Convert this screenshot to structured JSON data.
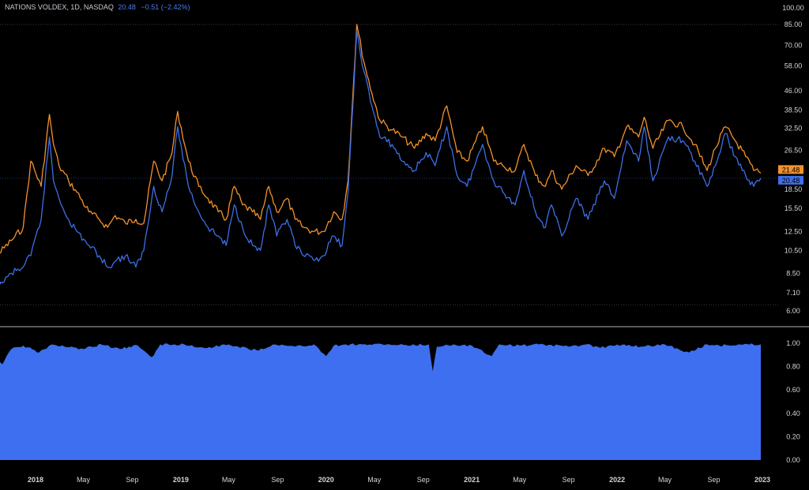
{
  "legend": {
    "symbol": "NATIONS VOLDEX, 1D, NASDAQ",
    "last_value": "20.48",
    "change": "−0.51 (−2.42%)"
  },
  "colors": {
    "background": "#000000",
    "orange_series": "#f5912b",
    "blue_series": "#3d6fe8",
    "lower_area": "#3d6ff0",
    "divider": "#b2b5be"
  },
  "chart_data": [
    {
      "type": "line",
      "title": "",
      "scale": "log",
      "ylim": [
        6.0,
        100.0
      ],
      "y_ticks": [
        "100.00",
        "85.00",
        "70.00",
        "58.00",
        "46.00",
        "38.50",
        "32.50",
        "26.50",
        "21.48",
        "20.48",
        "18.50",
        "15.50",
        "12.50",
        "10.50",
        "8.50",
        "7.10",
        "6.00"
      ],
      "x_ticks": [
        {
          "label": "2018",
          "date": "2018-01-01",
          "year": true
        },
        {
          "label": "May",
          "date": "2018-05-01",
          "year": false
        },
        {
          "label": "Sep",
          "date": "2018-09-01",
          "year": false
        },
        {
          "label": "2019",
          "date": "2019-01-01",
          "year": true
        },
        {
          "label": "May",
          "date": "2019-05-01",
          "year": false
        },
        {
          "label": "Sep",
          "date": "2019-09-01",
          "year": false
        },
        {
          "label": "2020",
          "date": "2020-01-01",
          "year": true
        },
        {
          "label": "May",
          "date": "2020-05-01",
          "year": false
        },
        {
          "label": "Sep",
          "date": "2020-09-01",
          "year": false
        },
        {
          "label": "2021",
          "date": "2021-01-01",
          "year": true
        },
        {
          "label": "May",
          "date": "2021-05-01",
          "year": false
        },
        {
          "label": "Sep",
          "date": "2021-09-01",
          "year": false
        },
        {
          "label": "2022",
          "date": "2022-01-01",
          "year": true
        },
        {
          "label": "May",
          "date": "2022-05-01",
          "year": false
        },
        {
          "label": "Sep",
          "date": "2022-09-01",
          "year": false
        },
        {
          "label": "2023",
          "date": "2023-01-01",
          "year": true
        }
      ],
      "price_badges": [
        {
          "label": "21.48",
          "value": 21.48,
          "color": "#f5912b"
        },
        {
          "label": "20.48",
          "value": 20.48,
          "color": "#3d6fe8"
        }
      ],
      "series": [
        {
          "color": "#f5912b",
          "x": [
            "2017-08-01",
            "2017-09-01",
            "2017-10-01",
            "2017-11-01",
            "2017-12-01",
            "2017-12-20",
            "2018-01-15",
            "2018-02-05",
            "2018-02-15",
            "2018-03-01",
            "2018-03-25",
            "2018-04-15",
            "2018-05-15",
            "2018-06-10",
            "2018-07-01",
            "2018-07-20",
            "2018-08-15",
            "2018-09-10",
            "2018-09-30",
            "2018-10-25",
            "2018-11-15",
            "2018-12-10",
            "2018-12-24",
            "2019-01-20",
            "2019-02-15",
            "2019-03-10",
            "2019-04-05",
            "2019-04-25",
            "2019-05-15",
            "2019-06-05",
            "2019-06-30",
            "2019-07-20",
            "2019-08-10",
            "2019-08-30",
            "2019-09-25",
            "2019-10-15",
            "2019-11-05",
            "2019-11-30",
            "2019-12-25",
            "2020-01-20",
            "2020-02-10",
            "2020-02-25",
            "2020-03-10",
            "2020-03-18",
            "2020-04-05",
            "2020-04-25",
            "2020-05-15",
            "2020-06-15",
            "2020-07-10",
            "2020-08-10",
            "2020-09-08",
            "2020-10-01",
            "2020-10-30",
            "2020-11-25",
            "2020-12-20",
            "2021-01-28",
            "2021-02-25",
            "2021-03-20",
            "2021-04-20",
            "2021-05-12",
            "2021-06-10",
            "2021-07-05",
            "2021-07-20",
            "2021-08-15",
            "2021-09-20",
            "2021-10-20",
            "2021-11-30",
            "2021-12-25",
            "2022-01-25",
            "2022-02-24",
            "2022-03-10",
            "2022-04-01",
            "2022-05-10",
            "2022-06-15",
            "2022-07-15",
            "2022-08-15",
            "2022-09-05",
            "2022-09-30",
            "2022-10-25",
            "2022-11-20",
            "2022-12-10",
            "2022-12-28"
          ],
          "values": [
            10.0,
            10.5,
            10.2,
            11.5,
            13.0,
            24.0,
            19.0,
            37.0,
            28.0,
            23.0,
            20.0,
            18.0,
            15.0,
            14.0,
            13.0,
            14.5,
            13.5,
            14.0,
            13.5,
            24.0,
            20.0,
            26.0,
            38.0,
            24.0,
            19.0,
            17.0,
            15.0,
            14.0,
            19.0,
            16.0,
            15.0,
            14.0,
            19.0,
            15.0,
            17.0,
            14.0,
            13.0,
            12.5,
            12.5,
            15.0,
            14.0,
            20.0,
            50.0,
            85.0,
            60.0,
            45.0,
            35.0,
            32.0,
            30.0,
            27.0,
            31.0,
            29.0,
            40.0,
            26.0,
            24.0,
            33.0,
            24.0,
            23.0,
            22.0,
            28.0,
            21.0,
            19.0,
            22.0,
            18.5,
            23.0,
            21.0,
            27.0,
            25.0,
            33.0,
            30.0,
            36.0,
            27.0,
            35.0,
            33.0,
            28.0,
            22.0,
            27.0,
            33.0,
            29.0,
            25.0,
            22.0,
            21.48
          ]
        },
        {
          "color": "#3d6fe8",
          "x": [
            "2017-08-01",
            "2017-09-01",
            "2017-10-01",
            "2017-11-01",
            "2017-12-01",
            "2017-12-20",
            "2018-01-15",
            "2018-02-05",
            "2018-02-15",
            "2018-03-01",
            "2018-03-25",
            "2018-04-15",
            "2018-05-15",
            "2018-06-10",
            "2018-07-01",
            "2018-07-20",
            "2018-08-15",
            "2018-09-10",
            "2018-09-30",
            "2018-10-25",
            "2018-11-15",
            "2018-12-10",
            "2018-12-24",
            "2019-01-20",
            "2019-02-15",
            "2019-03-10",
            "2019-04-05",
            "2019-04-25",
            "2019-05-15",
            "2019-06-05",
            "2019-06-30",
            "2019-07-20",
            "2019-08-10",
            "2019-08-30",
            "2019-09-25",
            "2019-10-15",
            "2019-11-05",
            "2019-11-30",
            "2019-12-25",
            "2020-01-20",
            "2020-02-10",
            "2020-02-25",
            "2020-03-10",
            "2020-03-18",
            "2020-04-05",
            "2020-04-25",
            "2020-05-15",
            "2020-06-15",
            "2020-07-10",
            "2020-08-10",
            "2020-09-08",
            "2020-10-01",
            "2020-10-30",
            "2020-11-25",
            "2020-12-20",
            "2021-01-28",
            "2021-02-25",
            "2021-03-20",
            "2021-04-20",
            "2021-05-12",
            "2021-06-10",
            "2021-07-05",
            "2021-07-20",
            "2021-08-15",
            "2021-09-20",
            "2021-10-20",
            "2021-11-30",
            "2021-12-25",
            "2022-01-25",
            "2022-02-24",
            "2022-03-10",
            "2022-04-01",
            "2022-05-10",
            "2022-06-15",
            "2022-07-15",
            "2022-08-15",
            "2022-09-05",
            "2022-09-30",
            "2022-10-25",
            "2022-11-20",
            "2022-12-10",
            "2022-12-28"
          ],
          "values": [
            6.8,
            8.0,
            7.5,
            8.5,
            9.0,
            10.0,
            14.0,
            30.0,
            20.0,
            17.0,
            14.0,
            12.5,
            11.0,
            10.0,
            9.0,
            9.5,
            10.0,
            9.0,
            10.5,
            19.0,
            15.0,
            21.0,
            33.0,
            19.0,
            15.0,
            13.0,
            12.0,
            11.0,
            16.0,
            13.0,
            11.0,
            10.5,
            16.0,
            12.0,
            14.0,
            11.0,
            10.0,
            9.6,
            10.0,
            12.0,
            11.0,
            18.0,
            45.0,
            80.0,
            55.0,
            40.0,
            30.0,
            28.0,
            24.0,
            22.0,
            26.0,
            23.0,
            33.0,
            21.0,
            19.0,
            28.0,
            20.0,
            18.0,
            16.0,
            22.0,
            15.0,
            13.0,
            16.0,
            12.0,
            17.0,
            14.0,
            20.0,
            17.0,
            29.0,
            24.0,
            33.0,
            20.0,
            30.0,
            29.0,
            24.0,
            19.0,
            23.0,
            31.0,
            25.0,
            21.0,
            19.0,
            20.48
          ]
        }
      ]
    },
    {
      "type": "area",
      "title": "",
      "ylim": [
        0.0,
        1.0
      ],
      "y_ticks": [
        "1.00",
        "0.80",
        "0.60",
        "0.40",
        "0.20",
        "0.00"
      ],
      "series": [
        {
          "color": "#3d6ff0",
          "x": [
            "2017-08-01",
            "2017-08-20",
            "2017-09-05",
            "2017-09-20",
            "2017-10-10",
            "2017-11-01",
            "2017-12-01",
            "2018-01-10",
            "2018-02-10",
            "2018-03-15",
            "2018-05-01",
            "2018-06-15",
            "2018-08-01",
            "2018-09-15",
            "2018-10-20",
            "2018-11-10",
            "2019-01-10",
            "2019-03-01",
            "2019-05-01",
            "2019-07-10",
            "2019-08-25",
            "2019-10-15",
            "2019-12-01",
            "2020-01-01",
            "2020-01-20",
            "2020-02-20",
            "2020-04-01",
            "2020-06-01",
            "2020-08-01",
            "2020-09-15",
            "2020-09-25",
            "2020-10-05",
            "2020-11-15",
            "2021-01-01",
            "2021-02-20",
            "2021-03-10",
            "2021-05-01",
            "2021-07-01",
            "2021-09-01",
            "2021-10-15",
            "2021-11-20",
            "2022-01-01",
            "2022-03-01",
            "2022-05-01",
            "2022-07-01",
            "2022-08-15",
            "2022-09-15",
            "2022-11-01",
            "2022-12-28"
          ],
          "values": [
            0.95,
            0.98,
            0.66,
            0.9,
            0.82,
            0.95,
            0.98,
            0.92,
            0.99,
            0.97,
            0.95,
            0.99,
            0.95,
            0.98,
            0.88,
            0.99,
            0.99,
            0.96,
            0.99,
            0.94,
            0.99,
            0.97,
            0.99,
            0.89,
            0.98,
            0.99,
            0.99,
            0.99,
            0.98,
            0.99,
            0.76,
            0.97,
            0.99,
            0.98,
            0.89,
            0.99,
            0.98,
            0.99,
            0.97,
            0.99,
            0.96,
            0.99,
            0.97,
            0.99,
            0.92,
            0.99,
            0.98,
            0.99,
            0.99
          ]
        }
      ]
    }
  ]
}
